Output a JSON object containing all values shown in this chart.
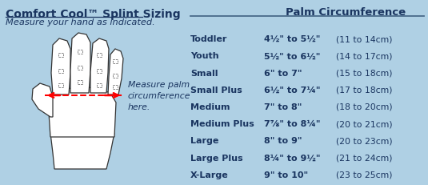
{
  "title_bold": "Comfort Cool",
  "title_tm": "™",
  "title_rest": " Splint Sizing",
  "subtitle": "Measure your hand as indicated.",
  "col_header": "Palm Circumference",
  "bg_color": "#afd0e4",
  "text_color": "#1a3560",
  "sizes": [
    "Toddler",
    "Youth",
    "Small",
    "Small Plus",
    "Medium",
    "Medium Plus",
    "Large",
    "Large Plus",
    "X-Large"
  ],
  "measurements": [
    "4½\" to 5½\"",
    "5½\" to 6½\"",
    "6\" to 7\"",
    "6½\" to 7¼\"",
    "7\" to 8\"",
    "7⅞\" to 8¼\"",
    "8\" to 9\"",
    "8¼\" to 9½\"",
    "9\" to 10\""
  ],
  "cm_ranges": [
    "(11 to 14cm)",
    "(14 to 17cm)",
    "(15 to 18cm)",
    "(17 to 18cm)",
    "(18 to 20cm)",
    "(20 to 21cm)",
    "(20 to 23cm)",
    "(21 to 24cm)",
    "(23 to 25cm)"
  ],
  "measure_palm_text": "Measure palm\ncircumference\nhere.",
  "divider_color": "#4a6a8a",
  "hand_outline_color": "#333333",
  "hand_fill_color": "#ffffff"
}
